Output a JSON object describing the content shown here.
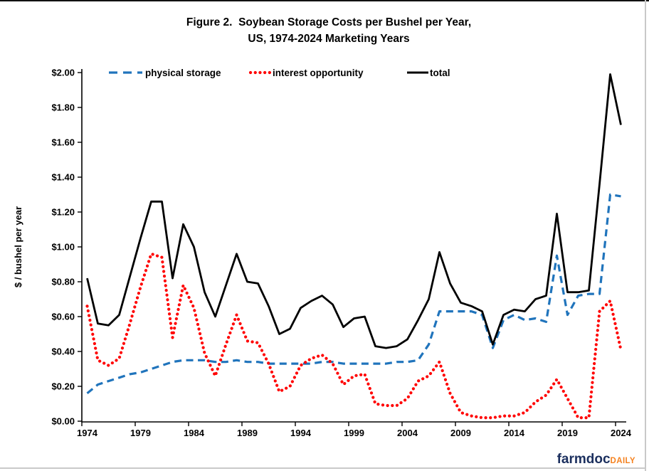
{
  "title": {
    "line1": "Figure 2.  Soybean Storage Costs per Bushel per Year,",
    "line2": "US, 1974-2024 Marketing Years"
  },
  "legend": [
    {
      "id": "physical",
      "label": "physical storage",
      "color": "#2074BC",
      "style": "dashed"
    },
    {
      "id": "interest",
      "label": "interest opportunity",
      "color": "#FF0000",
      "style": "dotted"
    },
    {
      "id": "total",
      "label": "total",
      "color": "#000000",
      "style": "solid"
    }
  ],
  "logo": {
    "word1": "farmdoc",
    "word2": "DAILY",
    "color1": "#1B2F5E",
    "color2": "#F58220"
  },
  "chart_data": {
    "type": "line",
    "title": "Figure 2. Soybean Storage Costs per Bushel per Year, US, 1974-2024 Marketing Years",
    "xlabel": "",
    "ylabel": "$ / bushel per year",
    "ylim": [
      0.0,
      2.0
    ],
    "y_tick_step": 0.2,
    "y_tick_labels": [
      "$0.00",
      "$0.20",
      "$0.40",
      "$0.60",
      "$0.80",
      "$1.00",
      "$1.20",
      "$1.40",
      "$1.60",
      "$1.80",
      "$2.00"
    ],
    "x_tick_years": [
      1974,
      1979,
      1984,
      1989,
      1994,
      1999,
      2004,
      2009,
      2014,
      2019,
      2024
    ],
    "grid": false,
    "legend_position": "top-inside",
    "x": [
      1974,
      1975,
      1976,
      1977,
      1978,
      1979,
      1980,
      1981,
      1982,
      1983,
      1984,
      1985,
      1986,
      1987,
      1988,
      1989,
      1990,
      1991,
      1992,
      1993,
      1994,
      1995,
      1996,
      1997,
      1998,
      1999,
      2000,
      2001,
      2002,
      2003,
      2004,
      2005,
      2006,
      2007,
      2008,
      2009,
      2010,
      2011,
      2012,
      2013,
      2014,
      2015,
      2016,
      2017,
      2018,
      2019,
      2020,
      2021,
      2022,
      2023,
      2024
    ],
    "series": [
      {
        "name": "physical storage",
        "values": [
          0.16,
          0.21,
          0.23,
          0.25,
          0.27,
          0.28,
          0.3,
          0.32,
          0.34,
          0.35,
          0.35,
          0.35,
          0.34,
          0.34,
          0.35,
          0.34,
          0.34,
          0.33,
          0.33,
          0.33,
          0.33,
          0.33,
          0.34,
          0.34,
          0.33,
          0.33,
          0.33,
          0.33,
          0.33,
          0.34,
          0.34,
          0.35,
          0.44,
          0.63,
          0.63,
          0.63,
          0.63,
          0.61,
          0.42,
          0.58,
          0.61,
          0.58,
          0.59,
          0.57,
          0.95,
          0.61,
          0.72,
          0.73,
          0.73,
          1.3,
          1.29
        ]
      },
      {
        "name": "interest opportunity",
        "values": [
          0.66,
          0.35,
          0.32,
          0.36,
          0.56,
          0.77,
          0.96,
          0.94,
          0.48,
          0.78,
          0.65,
          0.39,
          0.26,
          0.44,
          0.61,
          0.46,
          0.45,
          0.33,
          0.17,
          0.2,
          0.32,
          0.36,
          0.38,
          0.33,
          0.21,
          0.26,
          0.27,
          0.1,
          0.09,
          0.09,
          0.13,
          0.23,
          0.26,
          0.34,
          0.16,
          0.05,
          0.03,
          0.02,
          0.02,
          0.03,
          0.03,
          0.05,
          0.11,
          0.15,
          0.24,
          0.13,
          0.02,
          0.02,
          0.63,
          0.69,
          0.41
        ]
      },
      {
        "name": "total",
        "values": [
          0.82,
          0.56,
          0.55,
          0.61,
          0.83,
          1.05,
          1.26,
          1.26,
          0.82,
          1.13,
          1.0,
          0.74,
          0.6,
          0.78,
          0.96,
          0.8,
          0.79,
          0.66,
          0.5,
          0.53,
          0.65,
          0.69,
          0.72,
          0.67,
          0.54,
          0.59,
          0.6,
          0.43,
          0.42,
          0.43,
          0.47,
          0.58,
          0.7,
          0.97,
          0.79,
          0.68,
          0.66,
          0.63,
          0.44,
          0.61,
          0.64,
          0.63,
          0.7,
          0.72,
          1.19,
          0.74,
          0.74,
          0.75,
          1.36,
          1.99,
          1.7
        ]
      }
    ]
  }
}
